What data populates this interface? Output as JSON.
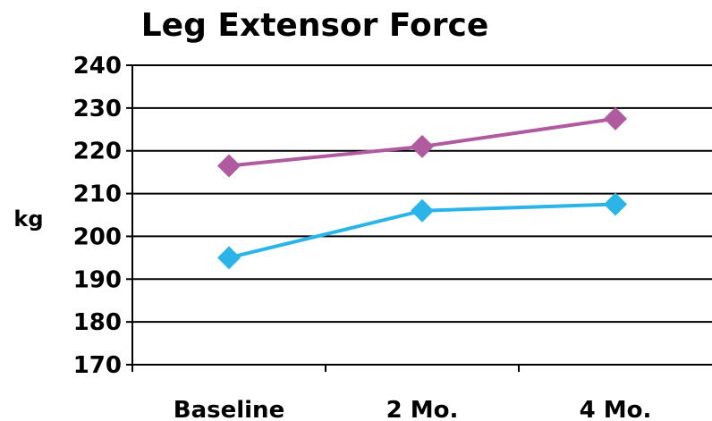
{
  "chart_data": {
    "type": "line",
    "title": "Leg Extensor Force",
    "xlabel": "",
    "ylabel": "kg",
    "categories": [
      "Baseline",
      "2 Mo.",
      "4 Mo."
    ],
    "ylim": [
      170,
      240
    ],
    "yticks": [
      170,
      180,
      190,
      200,
      210,
      220,
      230,
      240
    ],
    "grid": true,
    "legend": "none",
    "series": [
      {
        "values": [
          216.5,
          221,
          227.5
        ],
        "color": "#b05aa0",
        "marker": "diamond"
      },
      {
        "values": [
          195,
          206,
          207.5
        ],
        "color": "#2ab4e8",
        "marker": "diamond"
      }
    ]
  }
}
